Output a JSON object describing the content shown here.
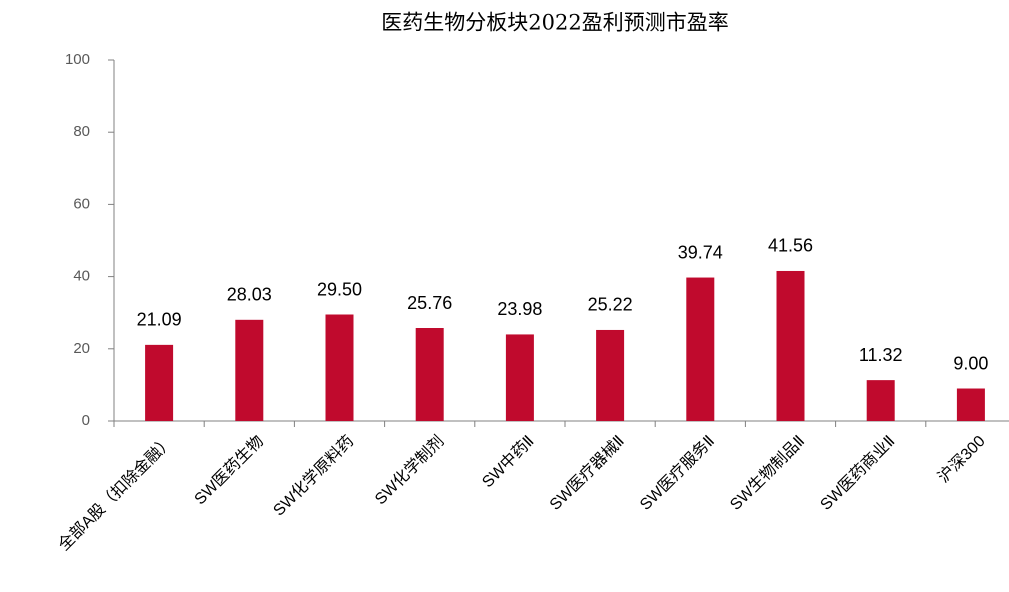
{
  "chart_data": {
    "type": "bar",
    "title": "医药生物分板块2022盈利预测市盈率",
    "categories": [
      "全部A股（扣除金融）",
      "SW医药生物",
      "SW化学原料药",
      "SW化学制剂",
      "SW中药Ⅱ",
      "SW医疗器械Ⅱ",
      "SW医疗服务Ⅱ",
      "SW生物制品Ⅱ",
      "SW医药商业Ⅱ",
      "沪深300"
    ],
    "values": [
      21.09,
      28.03,
      29.5,
      25.76,
      23.98,
      25.22,
      39.74,
      41.56,
      11.32,
      9
    ],
    "value_labels": [
      "21.09",
      "28.03",
      "29.50",
      "25.76",
      "23.98",
      "25.22",
      "39.74",
      "41.56",
      "11.32",
      "9.00"
    ],
    "color": "#c00a2d",
    "ylim": [
      0,
      100
    ],
    "yticks": [
      0,
      20,
      40,
      60,
      80,
      100
    ],
    "grid": false
  }
}
